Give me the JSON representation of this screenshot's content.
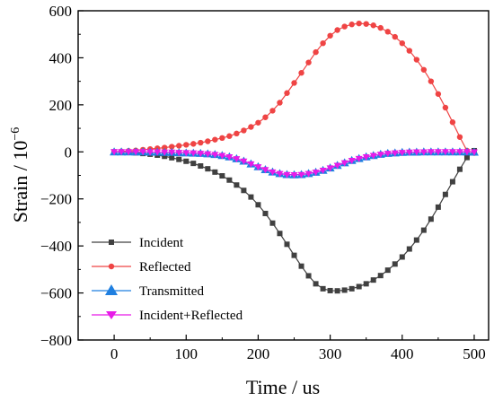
{
  "chart_data": {
    "type": "line",
    "xlabel": "Time / us",
    "ylabel_main": "Strain / 10",
    "ylabel_exp": "−6",
    "xlim": [
      -50,
      520
    ],
    "ylim": [
      -800,
      600
    ],
    "xticks": [
      "0",
      "100",
      "200",
      "300",
      "400",
      "500"
    ],
    "yticks": [
      "600",
      "400",
      "200",
      "0",
      "−200",
      "−400",
      "−600",
      "−800"
    ],
    "legend_position": "bottom-left",
    "grid": false,
    "series": [
      {
        "name": "Incident",
        "color": "#404040",
        "marker": "square",
        "x": [
          0,
          10,
          20,
          30,
          40,
          50,
          60,
          70,
          80,
          90,
          100,
          110,
          120,
          130,
          140,
          150,
          160,
          170,
          180,
          190,
          200,
          210,
          220,
          230,
          240,
          250,
          260,
          270,
          280,
          290,
          300,
          310,
          320,
          330,
          340,
          350,
          360,
          370,
          380,
          390,
          400,
          410,
          420,
          430,
          440,
          450,
          460,
          470,
          480,
          490,
          500
        ],
        "y": [
          0,
          -1,
          -2,
          -4,
          -7,
          -10,
          -14,
          -19,
          -25,
          -32,
          -40,
          -49,
          -60,
          -72,
          -86,
          -102,
          -120,
          -141,
          -164,
          -192,
          -225,
          -262,
          -303,
          -347,
          -393,
          -440,
          -486,
          -527,
          -561,
          -582,
          -590,
          -591,
          -588,
          -582,
          -573,
          -561,
          -545,
          -526,
          -503,
          -477,
          -447,
          -413,
          -375,
          -333,
          -286,
          -235,
          -181,
          -127,
          -74,
          -24,
          5
        ]
      },
      {
        "name": "Reflected",
        "color": "#ef4444",
        "marker": "circle",
        "x": [
          0,
          10,
          20,
          30,
          40,
          50,
          60,
          70,
          80,
          90,
          100,
          110,
          120,
          130,
          140,
          150,
          160,
          170,
          180,
          190,
          200,
          210,
          220,
          230,
          240,
          250,
          260,
          270,
          280,
          290,
          300,
          310,
          320,
          330,
          340,
          350,
          360,
          370,
          380,
          390,
          400,
          410,
          420,
          430,
          440,
          450,
          460,
          470,
          480,
          490,
          500
        ],
        "y": [
          0,
          2,
          4,
          6,
          9,
          12,
          15,
          18,
          22,
          26,
          30,
          34,
          39,
          45,
          52,
          59,
          67,
          78,
          91,
          106,
          124,
          147,
          175,
          209,
          250,
          293,
          336,
          380,
          424,
          462,
          494,
          518,
          533,
          542,
          546,
          544,
          538,
          527,
          511,
          489,
          462,
          430,
          392,
          349,
          300,
          246,
          188,
          126,
          63,
          5,
          -5
        ]
      },
      {
        "name": "Transmitted",
        "color": "#1f7fe0",
        "marker": "triangle-up",
        "x": [
          0,
          10,
          20,
          30,
          40,
          50,
          60,
          70,
          80,
          90,
          100,
          110,
          120,
          130,
          140,
          150,
          160,
          170,
          180,
          190,
          200,
          210,
          220,
          230,
          240,
          250,
          260,
          270,
          280,
          290,
          300,
          310,
          320,
          330,
          340,
          350,
          360,
          370,
          380,
          390,
          400,
          410,
          420,
          430,
          440,
          450,
          460,
          470,
          480,
          490,
          500
        ],
        "y": [
          0,
          0,
          0,
          0,
          0,
          -1,
          -1,
          -2,
          -2,
          -3,
          -4,
          -5,
          -6,
          -8,
          -11,
          -15,
          -21,
          -29,
          -39,
          -51,
          -63,
          -75,
          -85,
          -92,
          -96,
          -97,
          -96,
          -92,
          -86,
          -78,
          -68,
          -57,
          -46,
          -36,
          -28,
          -21,
          -15,
          -10,
          -6,
          -4,
          -2,
          -1,
          -1,
          0,
          0,
          0,
          0,
          0,
          0,
          0,
          -1
        ]
      },
      {
        "name": "Incident+Reflected",
        "color": "#e81be8",
        "marker": "triangle-down",
        "x": [
          0,
          10,
          20,
          30,
          40,
          50,
          60,
          70,
          80,
          90,
          100,
          110,
          120,
          130,
          140,
          150,
          160,
          170,
          180,
          190,
          200,
          210,
          220,
          230,
          240,
          250,
          260,
          270,
          280,
          290,
          300,
          310,
          320,
          330,
          340,
          350,
          360,
          370,
          380,
          390,
          400,
          410,
          420,
          430,
          440,
          450,
          460,
          470,
          480,
          490,
          500
        ],
        "y": [
          0,
          0,
          0,
          0,
          0,
          -1,
          -1,
          -2,
          -2,
          -3,
          -4,
          -5,
          -7,
          -9,
          -12,
          -16,
          -22,
          -30,
          -40,
          -52,
          -64,
          -76,
          -86,
          -93,
          -97,
          -98,
          -97,
          -93,
          -87,
          -79,
          -69,
          -58,
          -47,
          -37,
          -29,
          -22,
          -16,
          -11,
          -7,
          -5,
          -3,
          -2,
          -1,
          -1,
          0,
          0,
          0,
          0,
          0,
          0,
          -1
        ]
      }
    ]
  }
}
